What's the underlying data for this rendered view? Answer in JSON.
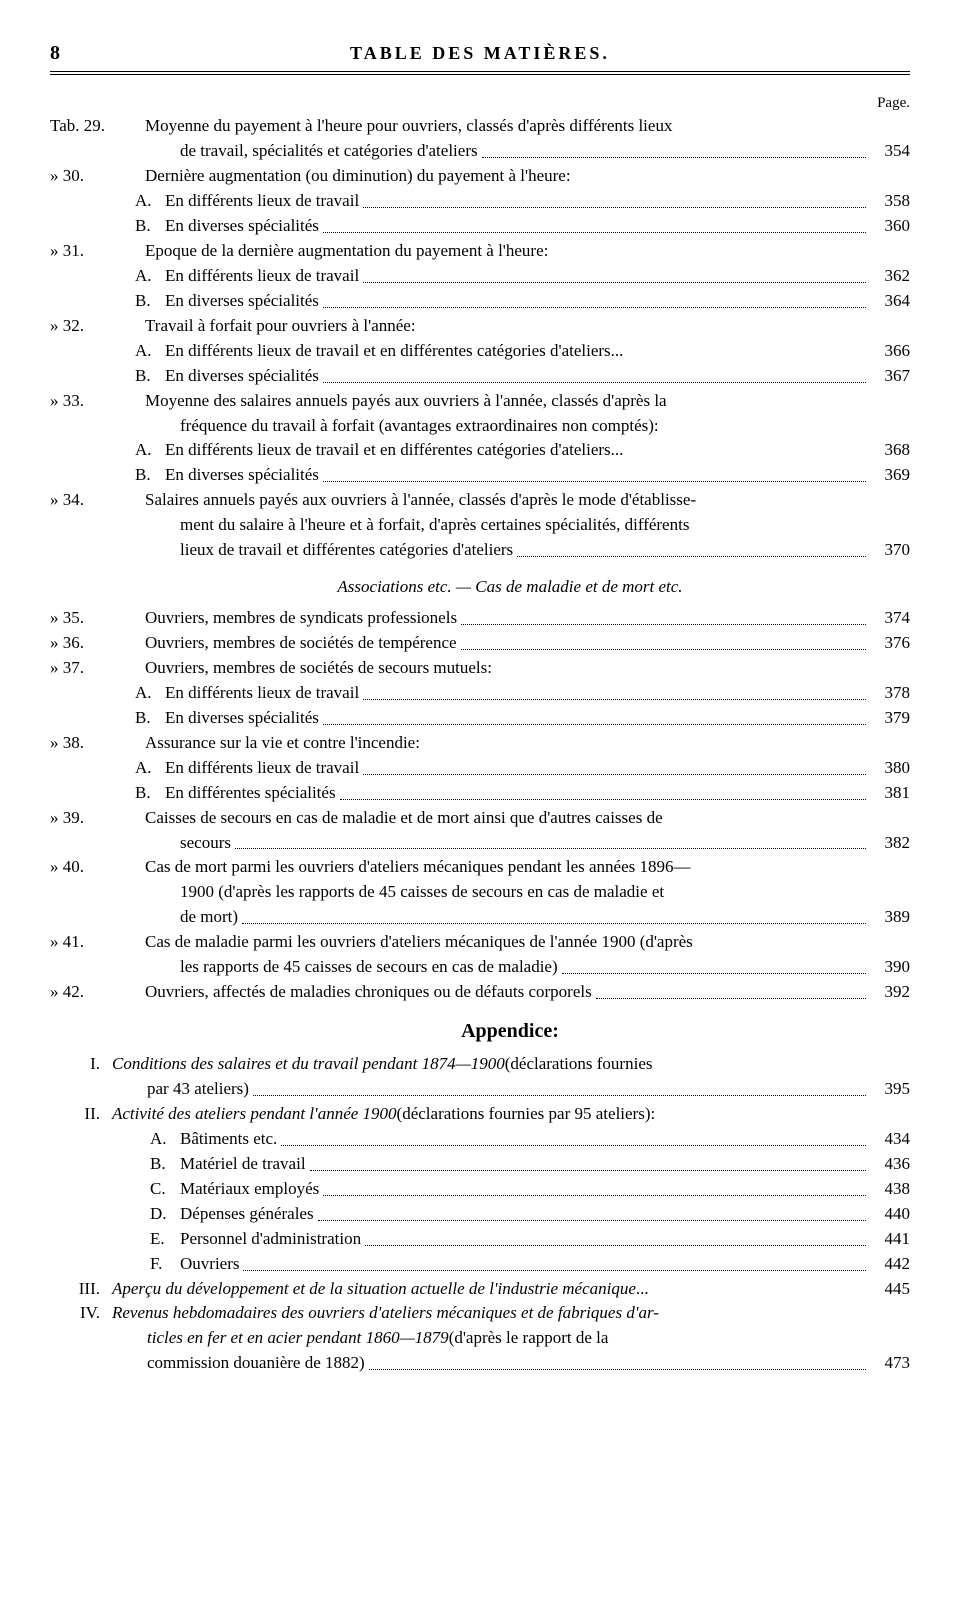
{
  "header": {
    "pageNo": "8",
    "title": "TABLE DES MATIÈRES.",
    "pageLabel": "Page."
  },
  "entries": [
    {
      "tab": "Tab. 29.",
      "lines": [
        "Moyenne du payement à l'heure pour ouvriers, classés d'après différents lieux",
        "de travail, spécialités et catégories d'ateliers"
      ],
      "page": "354"
    },
    {
      "tab": "»   30.",
      "lines": [
        "Dernière augmentation (ou diminution) du payement à l'heure:"
      ],
      "page": ""
    },
    {
      "sub": true,
      "letter": "A.",
      "lines": [
        "En différents lieux de travail"
      ],
      "page": "358"
    },
    {
      "sub": true,
      "letter": "B.",
      "lines": [
        "En diverses spécialités"
      ],
      "page": "360"
    },
    {
      "tab": "»   31.",
      "lines": [
        "Epoque de la dernière augmentation du payement à l'heure:"
      ],
      "page": ""
    },
    {
      "sub": true,
      "letter": "A.",
      "lines": [
        "En différents lieux de travail"
      ],
      "page": "362"
    },
    {
      "sub": true,
      "letter": "B.",
      "lines": [
        "En diverses spécialités"
      ],
      "page": "364"
    },
    {
      "tab": "»   32.",
      "lines": [
        "Travail à forfait pour ouvriers à l'année:"
      ],
      "page": ""
    },
    {
      "sub": true,
      "letter": "A.",
      "lines": [
        "En différents lieux de travail et en différentes catégories d'ateliers"
      ],
      "page": "366",
      "trail": "..."
    },
    {
      "sub": true,
      "letter": "B.",
      "lines": [
        "En diverses spécialités"
      ],
      "page": "367"
    },
    {
      "tab": "»   33.",
      "lines": [
        "Moyenne des salaires annuels payés aux ouvriers à l'année, classés d'après la",
        "fréquence du travail à forfait (avantages extraordinaires non comptés):"
      ],
      "page": ""
    },
    {
      "sub": true,
      "letter": "A.",
      "lines": [
        "En différents lieux de travail et en différentes catégories d'ateliers"
      ],
      "page": "368",
      "trail": "..."
    },
    {
      "sub": true,
      "letter": "B.",
      "lines": [
        "En diverses spécialités"
      ],
      "page": "369"
    },
    {
      "tab": "»   34.",
      "lines": [
        "Salaires annuels payés aux ouvriers à l'année, classés d'après le mode d'établisse-",
        "ment du salaire à l'heure et à forfait, d'après certaines spécialités, différents",
        "lieux de travail et différentes catégories d'ateliers"
      ],
      "page": "370"
    }
  ],
  "sectionTitle": "Associations etc. — Cas de maladie et de mort etc.",
  "entries2": [
    {
      "tab": "»   35.",
      "lines": [
        "Ouvriers, membres de syndicats professionels"
      ],
      "page": "374"
    },
    {
      "tab": "»   36.",
      "lines": [
        "Ouvriers, membres de sociétés de tempérence"
      ],
      "page": "376"
    },
    {
      "tab": "»   37.",
      "lines": [
        "Ouvriers, membres de sociétés de secours mutuels:"
      ],
      "page": ""
    },
    {
      "sub": true,
      "letter": "A.",
      "lines": [
        "En différents lieux de travail"
      ],
      "page": "378"
    },
    {
      "sub": true,
      "letter": "B.",
      "lines": [
        "En diverses spécialités"
      ],
      "page": "379"
    },
    {
      "tab": "»   38.",
      "lines": [
        "Assurance sur la vie et contre l'incendie:"
      ],
      "page": ""
    },
    {
      "sub": true,
      "letter": "A.",
      "lines": [
        "En différents lieux de travail"
      ],
      "page": "380"
    },
    {
      "sub": true,
      "letter": "B.",
      "lines": [
        "En différentes spécialités"
      ],
      "page": "381"
    },
    {
      "tab": "»   39.",
      "lines": [
        "Caisses de secours en cas de maladie et de mort ainsi que d'autres caisses de",
        "secours"
      ],
      "page": "382"
    },
    {
      "tab": "»   40.",
      "lines": [
        "Cas de mort parmi les ouvriers d'ateliers mécaniques pendant les années 1896—",
        "1900 (d'après les rapports de 45 caisses de secours en cas de maladie et",
        "de mort)"
      ],
      "page": "389"
    },
    {
      "tab": "»   41.",
      "lines": [
        "Cas de maladie parmi les ouvriers d'ateliers mécaniques de l'année 1900 (d'après",
        "les rapports de 45 caisses de secours en cas de maladie)"
      ],
      "page": "390"
    },
    {
      "tab": "»   42.",
      "lines": [
        "Ouvriers, affectés de maladies chroniques ou de défauts corporels"
      ],
      "page": "392"
    }
  ],
  "appendixTitle": "Appendice:",
  "appendix": [
    {
      "roman": "I.",
      "text1": "Conditions des salaires et du travail pendant 1874—1900",
      "text2": " (déclarations fournies",
      "cont": [
        "par 43 ateliers)"
      ],
      "page": "395"
    },
    {
      "roman": "II.",
      "text1": "Activité des ateliers pendant l'année 1900",
      "text2": " (déclarations fournies par 95 ateliers):",
      "page": ""
    },
    {
      "appSub": true,
      "letter": "A.",
      "lines": [
        "Bâtiments etc."
      ],
      "page": "434"
    },
    {
      "appSub": true,
      "letter": "B.",
      "lines": [
        "Matériel de travail"
      ],
      "page": "436"
    },
    {
      "appSub": true,
      "letter": "C.",
      "lines": [
        "Matériaux employés"
      ],
      "page": "438"
    },
    {
      "appSub": true,
      "letter": "D.",
      "lines": [
        "Dépenses générales"
      ],
      "page": "440"
    },
    {
      "appSub": true,
      "letter": "E.",
      "lines": [
        "Personnel d'administration"
      ],
      "page": "441"
    },
    {
      "appSub": true,
      "letter": "F.",
      "lines": [
        "Ouvriers"
      ],
      "page": "442"
    },
    {
      "roman": "III.",
      "text1": "Aperçu du développement et de la situation actuelle de l'industrie mécanique",
      "text2": "",
      "page": "445",
      "trail": "..."
    },
    {
      "roman": "IV.",
      "text1": "Revenus hebdomadaires des ouvriers d'ateliers mécaniques et de fabriques d'ar-",
      "text2": "",
      "contItalic": [
        "ticles en fer et en acier pendant 1860—1879"
      ],
      "contPlain": " (d'après le rapport de la",
      "cont2": [
        "commission douanière de 1882)"
      ],
      "page": "473"
    }
  ]
}
